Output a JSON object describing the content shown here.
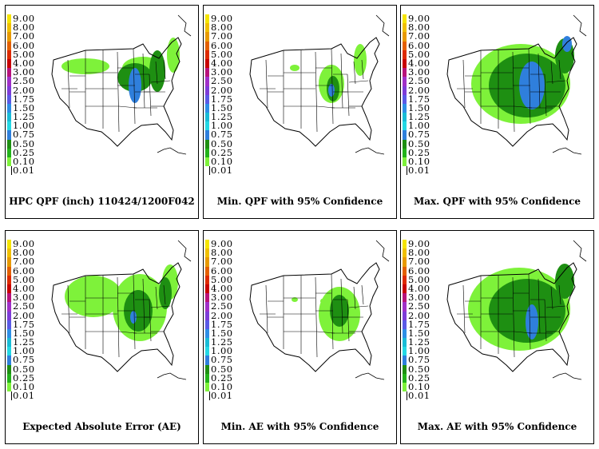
{
  "legend": {
    "levels": [
      "9.00",
      "8.00",
      "7.00",
      "6.00",
      "5.00",
      "4.00",
      "3.00",
      "2.50",
      "2.00",
      "1.75",
      "1.50",
      "1.25",
      "1.00",
      "0.75",
      "0.50",
      "0.25",
      "0.10",
      "0.01"
    ],
    "colors": [
      "#f5e400",
      "#f0c000",
      "#e89a00",
      "#e46000",
      "#dd2a00",
      "#c80000",
      "#b8127a",
      "#a030c8",
      "#7d3cd8",
      "#5a5ae6",
      "#2e8fe6",
      "#19bcd6",
      "#24d8e4",
      "#2f7fdc",
      "#1e8f12",
      "#22b21a",
      "#7ef23a",
      "#ffffff"
    ]
  },
  "panels": [
    {
      "caption": "HPC QPF (inch) 110424/1200F042",
      "palette": "qpf"
    },
    {
      "caption": "Min. QPF with 95% Confidence",
      "palette": "min"
    },
    {
      "caption": "Max. QPF with 95% Confidence",
      "palette": "max"
    },
    {
      "caption": "Expected Absolute Error (AE)",
      "palette": "ae"
    },
    {
      "caption": "Min. AE with 95% Confidence",
      "palette": "minae"
    },
    {
      "caption": "Max. AE with 95% Confidence",
      "palette": "maxae"
    }
  ]
}
